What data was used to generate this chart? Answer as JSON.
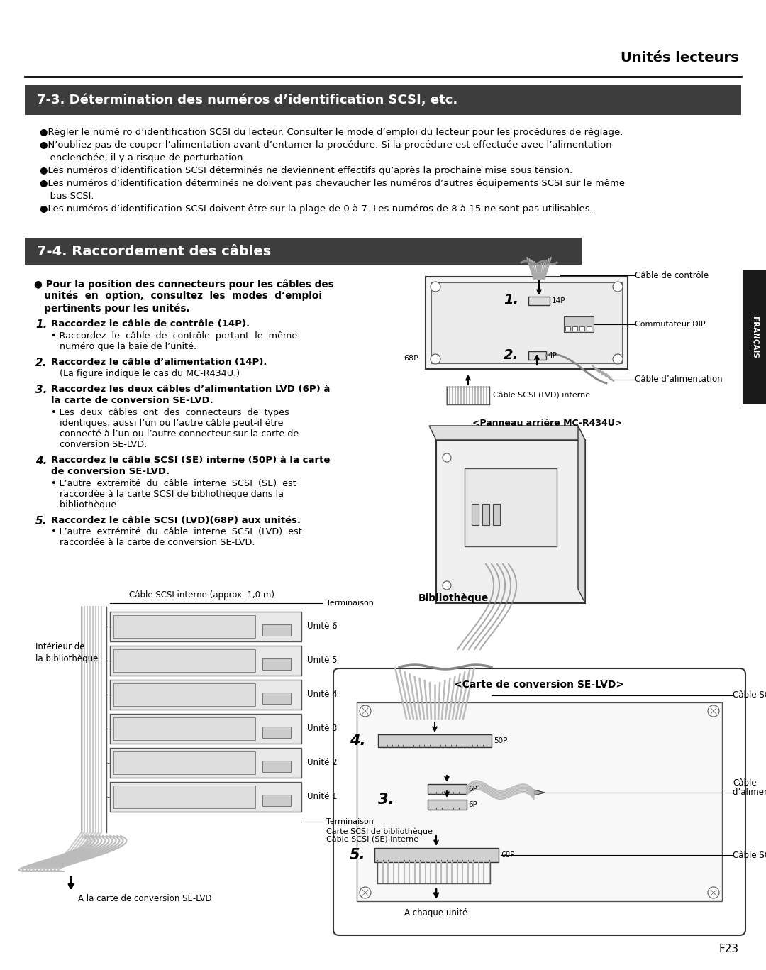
{
  "page_bg": "#ffffff",
  "top_header_text": "Unités lecteurs",
  "section1_title": "7-3. Détermination des numéros d’identification SCSI, etc.",
  "section1_bullets": [
    "●Régler le numé ro d’identification SCSI du lecteur. Consulter le mode d’emploi du lecteur pour les procédures de réglage.",
    "●N’oubliez pas de couper l’alimentation avant d’entamer la procédure. Si la procédure est effectuée avec l’alimentation",
    "  enclеnchée, il y a risque de perturbation.",
    "●Les numéros d’identification SCSI déterminés ne deviennent effectifs qu’après la prochaine mise sous tension.",
    "●Les numéros d’identification déterminés ne doivent pas chevaucher les numéros d’autres équipements SCSI sur le même",
    "  bus SCSI.",
    "●Les numéros d’identification SCSI doivent être sur la plage de 0 à 7. Les numéros de 8 à 15 ne sont pas utilisables."
  ],
  "section2_title": "7-4. Raccordement des câbles",
  "intro_bold_lines": [
    "● Pour la position des connecteurs pour les câbles des",
    "   unités  en  option,  consultez  les  modes  d’emploi",
    "   pertinents pour les unités."
  ],
  "step1_num": "1.",
  "step1_main": "Raccordez le câble de contrôle (14P).",
  "step1_sub1": "• Raccordez  le  câble  de  contrôle  portant  le  même",
  "step1_sub2": "   numéro que la baie de l’unité.",
  "step2_num": "2.",
  "step2_main": "Raccordez le câble d’alimentation (14P).",
  "step2_sub1": "   (La figure indique le cas du MC-R434U.)",
  "step3_num": "3.",
  "step3_main1": "Raccordez les deux câbles d’alimentation LVD (6P) à",
  "step3_main2": "la carte de conversion SE-LVD.",
  "step3_sub1": "• Les  deux  câbles  ont  des  connecteurs  de  types",
  "step3_sub2": "   identiques, aussi l’un ou l’autre câble peut-il être",
  "step3_sub3": "   connecté à l’un ou l’autre connecteur sur la carte de",
  "step3_sub4": "   conversion SE-LVD.",
  "step4_num": "4.",
  "step4_main1": "Raccordez le câble SCSI (SE) interne (50P) à la carte",
  "step4_main2": "de conversion SE-LVD.",
  "step4_sub1": "• L’autre  extrémité  du  câble  interne  SCSI  (SE)  est",
  "step4_sub2": "   raccordée à la carte SCSI de bibliothèque dans la",
  "step4_sub3": "   bibliothèque.",
  "step5_num": "5.",
  "step5_main": "Raccordez le câble SCSI (LVD)(68P) aux unités.",
  "step5_sub1": "• L’autre  extrémité  du  câble  interne  SCSI  (LVD)  est",
  "step5_sub2": "   raccordée à la carte de conversion SE-LVD.",
  "francais_label": "FRANÇAIS",
  "page_num": "F23",
  "section_dark_bg": "#3d3d3d",
  "section_text_color": "#ffffff"
}
